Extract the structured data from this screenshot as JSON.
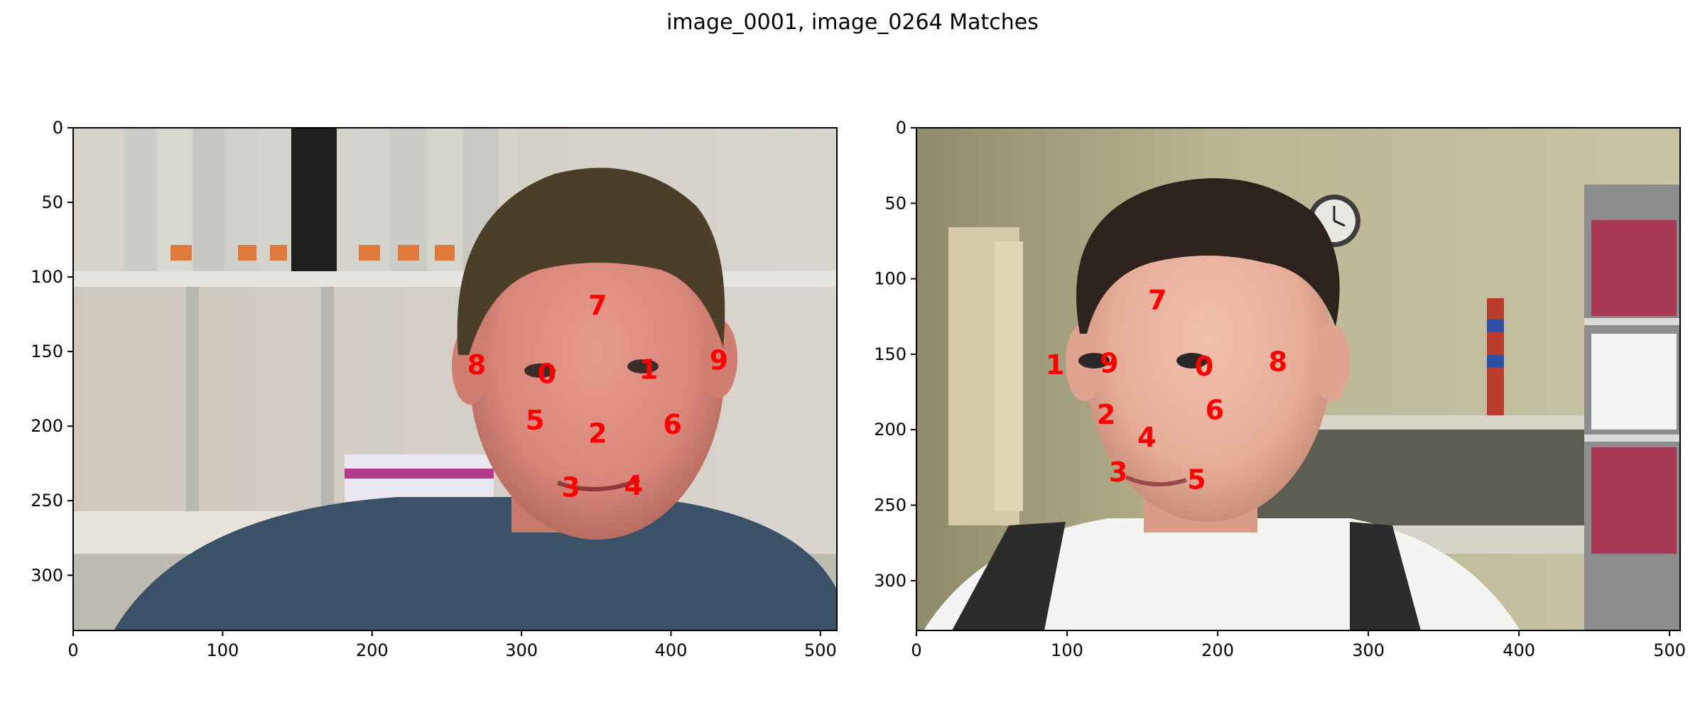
{
  "figure": {
    "title": "image_0001, image_0264 Matches"
  },
  "marker_color": "#ff0000",
  "chart_data": [
    {
      "type": "scatter",
      "image": "image_0001",
      "title": "",
      "xlabel": "",
      "ylabel": "",
      "xlim": [
        0,
        511
      ],
      "ylim": [
        337,
        0
      ],
      "xticks": [
        0,
        100,
        200,
        300,
        400,
        500
      ],
      "yticks": [
        0,
        50,
        100,
        150,
        200,
        250,
        300
      ],
      "grid": false,
      "scene": "face-photo-bookshelf",
      "points": [
        {
          "label": "0",
          "x": 317,
          "y": 165
        },
        {
          "label": "1",
          "x": 385,
          "y": 162
        },
        {
          "label": "2",
          "x": 351,
          "y": 205
        },
        {
          "label": "3",
          "x": 333,
          "y": 241
        },
        {
          "label": "4",
          "x": 375,
          "y": 240
        },
        {
          "label": "5",
          "x": 309,
          "y": 196
        },
        {
          "label": "6",
          "x": 401,
          "y": 199
        },
        {
          "label": "7",
          "x": 351,
          "y": 119
        },
        {
          "label": "8",
          "x": 270,
          "y": 159
        },
        {
          "label": "9",
          "x": 432,
          "y": 156
        }
      ]
    },
    {
      "type": "scatter",
      "image": "image_0264",
      "title": "",
      "xlabel": "",
      "ylabel": "",
      "xlim": [
        0,
        507
      ],
      "ylim": [
        333,
        0
      ],
      "xticks": [
        0,
        100,
        200,
        300,
        400,
        500
      ],
      "yticks": [
        0,
        50,
        100,
        150,
        200,
        250,
        300
      ],
      "grid": false,
      "scene": "face-photo-office",
      "points": [
        {
          "label": "0",
          "x": 191,
          "y": 158
        },
        {
          "label": "1",
          "x": 92,
          "y": 157
        },
        {
          "label": "2",
          "x": 126,
          "y": 190
        },
        {
          "label": "3",
          "x": 134,
          "y": 228
        },
        {
          "label": "4",
          "x": 153,
          "y": 205
        },
        {
          "label": "5",
          "x": 186,
          "y": 233
        },
        {
          "label": "6",
          "x": 198,
          "y": 187
        },
        {
          "label": "7",
          "x": 160,
          "y": 114
        },
        {
          "label": "8",
          "x": 240,
          "y": 155
        },
        {
          "label": "9",
          "x": 128,
          "y": 156
        }
      ]
    }
  ]
}
